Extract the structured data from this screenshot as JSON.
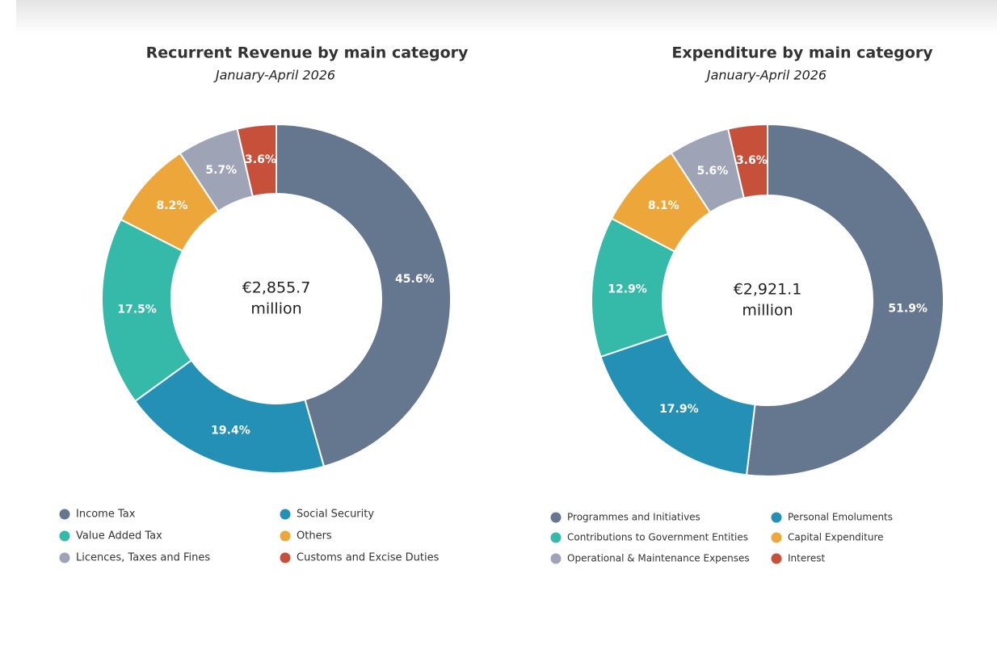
{
  "chart_data": [
    {
      "type": "pie",
      "title": "Recurrent Revenue by main category",
      "subtitle": "January-April 2026",
      "center_text": [
        "€2,855.7",
        "million"
      ],
      "categories": [
        "Income Tax",
        "Social Security",
        "Value Added Tax",
        "Others",
        "Licences, Taxes and Fines",
        "Customs and Excise Duties"
      ],
      "values": [
        45.6,
        19.4,
        17.5,
        8.2,
        5.7,
        3.6
      ],
      "value_labels": [
        "45.6%",
        "19.4%",
        "17.5%",
        "8.2%",
        "5.7%",
        "3.6%"
      ],
      "colors": [
        "#64778f",
        "#2590b5",
        "#35b9a9",
        "#eda63a",
        "#9ea4b6",
        "#c7503a"
      ]
    },
    {
      "type": "pie",
      "title": "Expenditure by main category",
      "subtitle": "January-April 2026",
      "center_text": [
        "€2,921.1",
        "million"
      ],
      "categories": [
        "Programmes and Initiatives",
        "Personal Emoluments",
        "Contributions to Government Entities",
        "Capital Expenditure",
        "Operational & Maintenance Expenses",
        "Interest"
      ],
      "values": [
        51.9,
        17.9,
        12.9,
        8.1,
        5.6,
        3.6
      ],
      "value_labels": [
        "51.9%",
        "17.9%",
        "12.9%",
        "8.1%",
        "5.6%",
        "3.6%"
      ],
      "colors": [
        "#64778f",
        "#2590b5",
        "#35b9a9",
        "#eda63a",
        "#9ea4b6",
        "#c7503a"
      ]
    }
  ]
}
